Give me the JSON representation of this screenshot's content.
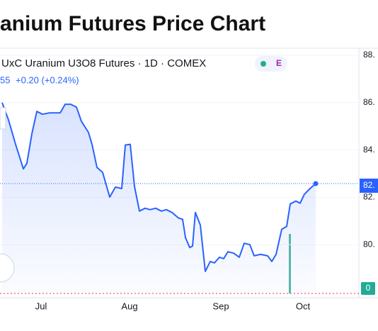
{
  "chart_data": {
    "type": "line",
    "title": "anium Futures Price Chart",
    "legend_title": "UxC Uranium U3O8 Futures · 1D · COMEX",
    "last_price": "55",
    "change": "+0.20 (+0.24%)",
    "badge": "E",
    "price_label": "82.",
    "volume_label": "0",
    "x": [
      3,
      12,
      22,
      33,
      38,
      45,
      52,
      60,
      70,
      85,
      92,
      100,
      108,
      115,
      125,
      130,
      137,
      145,
      155,
      163,
      172,
      177,
      184,
      190,
      197,
      205,
      212,
      220,
      228,
      235,
      243,
      252,
      258,
      262,
      268,
      272,
      276,
      283,
      290,
      297,
      303,
      310,
      316,
      322,
      330,
      338,
      345,
      353,
      359,
      368,
      378,
      384,
      390,
      398,
      405,
      410,
      418,
      424,
      430,
      438,
      446
    ],
    "xlim": [
      0,
      534
    ],
    "xticks": [
      {
        "value": 58,
        "label": "Jul"
      },
      {
        "value": 183,
        "label": "Aug"
      },
      {
        "value": 312,
        "label": "Sep"
      },
      {
        "value": 428,
        "label": "Oct"
      }
    ],
    "series": [
      {
        "name": "UxC Uranium U3O8 Futures",
        "color": "#2962ff",
        "values": [
          86.0,
          85.27,
          84.24,
          83.2,
          83.44,
          84.68,
          85.63,
          85.51,
          85.57,
          85.57,
          85.93,
          85.93,
          85.81,
          85.21,
          84.74,
          84.24,
          83.26,
          83.05,
          82.01,
          82.43,
          82.37,
          84.21,
          84.24,
          82.46,
          81.42,
          81.54,
          81.48,
          81.54,
          81.42,
          81.48,
          81.36,
          81.13,
          81.07,
          80.3,
          79.88,
          79.94,
          81.36,
          80.83,
          78.87,
          79.29,
          79.23,
          79.47,
          79.41,
          79.7,
          79.64,
          79.47,
          80.06,
          80.0,
          79.53,
          79.59,
          79.53,
          79.29,
          79.59,
          80.65,
          80.77,
          81.72,
          81.84,
          81.75,
          82.13,
          82.37,
          82.58
        ]
      }
    ],
    "ylim": [
      77.94,
      88
    ],
    "yticks": [
      {
        "value": 88,
        "label": "88."
      },
      {
        "value": 86,
        "label": "86."
      },
      {
        "value": 84,
        "label": "84."
      },
      {
        "value": 82,
        "label": "82."
      },
      {
        "value": 80,
        "label": "80."
      }
    ]
  }
}
